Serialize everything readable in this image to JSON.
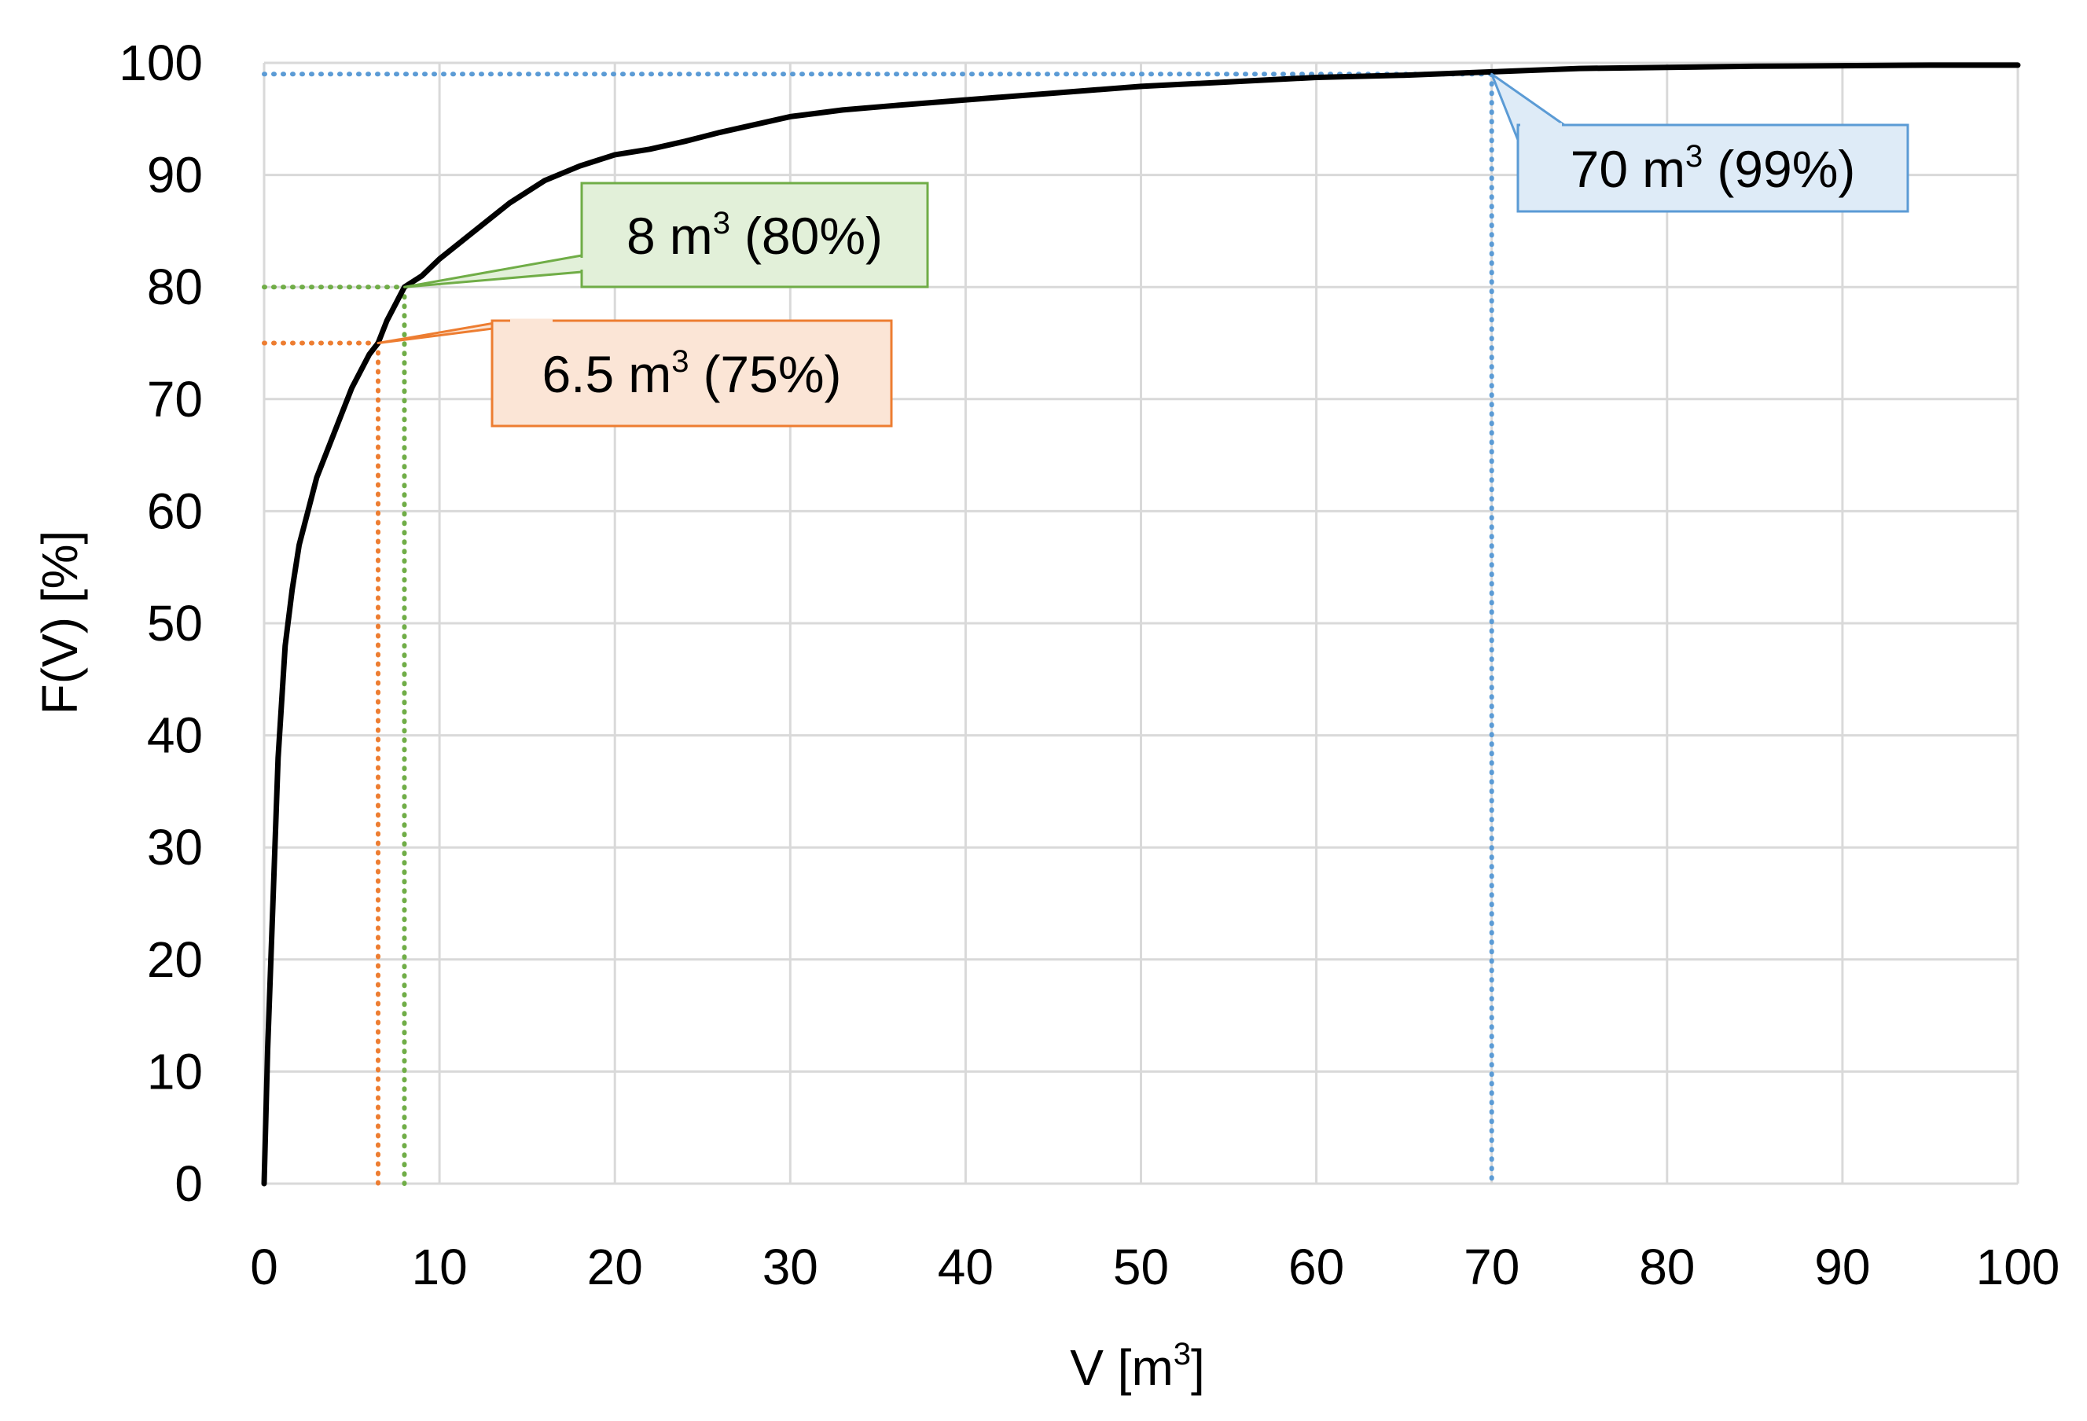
{
  "chart_data": {
    "type": "line",
    "title": "",
    "xlabel": "V [m",
    "xlabel_sup": "3",
    "xlabel_close": "]",
    "ylabel": "F(V) [%]",
    "xlim": [
      0,
      100
    ],
    "ylim": [
      0,
      100
    ],
    "x_ticks": [
      0,
      10,
      20,
      30,
      40,
      50,
      60,
      70,
      80,
      90,
      100
    ],
    "y_ticks": [
      0,
      10,
      20,
      30,
      40,
      50,
      60,
      70,
      80,
      90,
      100
    ],
    "grid": true,
    "legend": "none",
    "series": [
      {
        "color": "#000000",
        "x": [
          0,
          0.2,
          0.5,
          0.8,
          1.2,
          1.6,
          2,
          2.5,
          3,
          4,
          5,
          6,
          6.5,
          7,
          8,
          9,
          10,
          12,
          14,
          16,
          18,
          20,
          22,
          24,
          26,
          28,
          30,
          33,
          36,
          40,
          45,
          50,
          55,
          60,
          65,
          70,
          75,
          80,
          85,
          90,
          95,
          100
        ],
        "y": [
          0,
          12,
          25,
          38,
          48,
          53,
          57,
          60,
          63,
          67,
          71,
          74,
          75,
          77,
          80,
          81,
          82.5,
          85,
          87.5,
          89.5,
          90.8,
          91.8,
          92.3,
          93,
          93.8,
          94.5,
          95.2,
          95.8,
          96.2,
          96.7,
          97.3,
          97.9,
          98.3,
          98.7,
          98.9,
          99.2,
          99.5,
          99.6,
          99.7,
          99.75,
          99.8,
          99.8
        ]
      }
    ],
    "annotations": [
      {
        "x": 6.5,
        "y": 75,
        "value": "6.5",
        "unit": "m",
        "sup": "3",
        "pct": "(75%)",
        "color": "#ED7D31",
        "fill": "#FBE5D6"
      },
      {
        "x": 8,
        "y": 80,
        "value": "8",
        "unit": "m",
        "sup": "3",
        "pct": "(80%)",
        "color": "#70AD47",
        "fill": "#E2F0D9"
      },
      {
        "x": 70,
        "y": 99,
        "value": "70",
        "unit": "m",
        "sup": "3",
        "pct": "(99%)",
        "color": "#5B9BD5",
        "fill": "#DEEBF7"
      }
    ]
  }
}
